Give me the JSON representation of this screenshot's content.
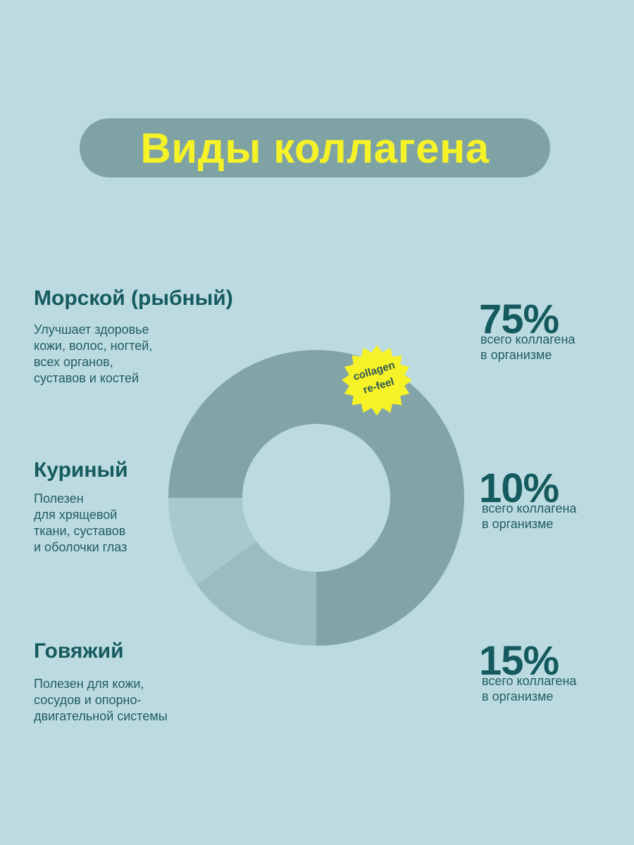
{
  "title": "Виды коллагена",
  "types": [
    {
      "heading": "Морской (рыбный)",
      "description": "Улучшает здоровье\nкожи, волос, ногтей,\nвсех органов,\nсуставов и костей"
    },
    {
      "heading": "Куриный",
      "description": "Полезен\nдля хрящевой\nткани, суставов\nи оболочки глаз"
    },
    {
      "heading": "Говяжий",
      "description": "Полезен для кожи,\nсосудов и опорно-\nдвигательной системы"
    }
  ],
  "percents": [
    {
      "value": "75%",
      "note": "всего коллагена\nв организме"
    },
    {
      "value": "10%",
      "note": "всего коллагена\nв организме"
    },
    {
      "value": "15%",
      "note": "всего коллагена\nв организме"
    }
  ],
  "badge": {
    "line1": "collagen",
    "line2": "re-feel"
  },
  "colors": {
    "background": "#bcdbe1",
    "accent_yellow": "#f5f227",
    "slice_marine": "#83a4a6",
    "slice_chicken": "#a9cacd",
    "slice_beef": "#9bbcc0"
  },
  "chart_data": {
    "type": "pie",
    "categories": [
      "Морской (рыбный)",
      "Куриный",
      "Говяжий"
    ],
    "values": [
      75,
      10,
      15
    ],
    "donut": true
  }
}
